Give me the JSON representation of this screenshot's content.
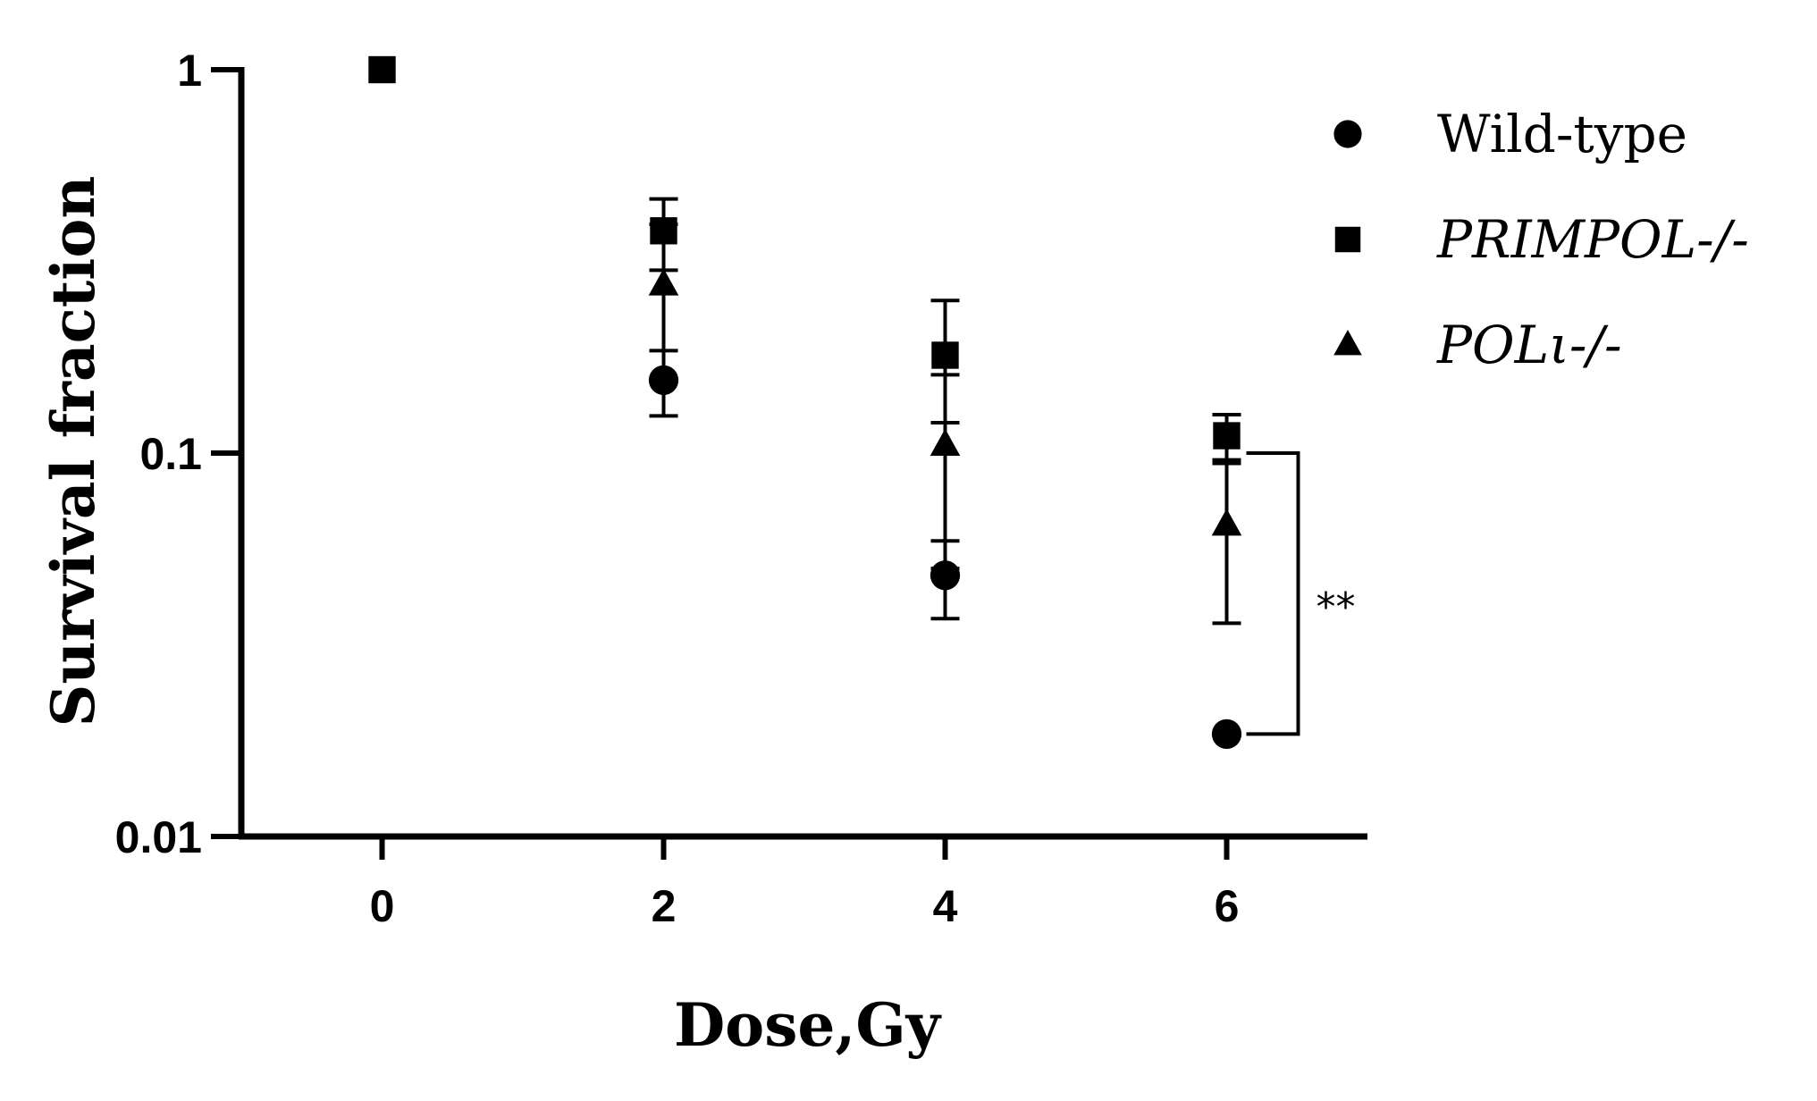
{
  "chart_data": {
    "type": "scatter",
    "xlabel": "Dose,Gy",
    "ylabel": "Survival fraction",
    "x_ticks": [
      "0",
      "2",
      "4",
      "6"
    ],
    "y_ticks": [
      "0.01",
      "0.1",
      "1"
    ],
    "xlim": [
      -1,
      7
    ],
    "ylim": [
      0.01,
      1
    ],
    "y_scale": "log",
    "grid": false,
    "legend_position": "top-right",
    "series": [
      {
        "name": "Wild-type",
        "marker": "circle",
        "italic": false,
        "color": "#000000",
        "points": [
          {
            "x": 2,
            "y": 0.155,
            "err_lo": 0.125,
            "err_hi": 0.185
          },
          {
            "x": 4,
            "y": 0.048,
            "err_lo": 0.037,
            "err_hi": 0.059
          },
          {
            "x": 6,
            "y": 0.0185
          }
        ]
      },
      {
        "name": "PRIMPOL-/-",
        "marker": "square",
        "italic": true,
        "color": "#000000",
        "points": [
          {
            "x": 0,
            "y": 1.0
          },
          {
            "x": 2,
            "y": 0.38,
            "err_lo": 0.3,
            "err_hi": 0.46
          },
          {
            "x": 4,
            "y": 0.18,
            "err_lo": 0.12,
            "err_hi": 0.25
          },
          {
            "x": 6,
            "y": 0.111,
            "err_lo": 0.096,
            "err_hi": 0.126
          }
        ]
      },
      {
        "name": "POLι-/-",
        "marker": "triangle",
        "italic": true,
        "color": "#000000",
        "points": [
          {
            "x": 2,
            "y": 0.275,
            "err_lo": 0.155,
            "err_hi": 0.395
          },
          {
            "x": 4,
            "y": 0.105,
            "err_lo": 0.05,
            "err_hi": 0.16
          },
          {
            "x": 6,
            "y": 0.065,
            "err_lo": 0.036,
            "err_hi": 0.094
          }
        ]
      }
    ],
    "annotations": [
      {
        "text": "**",
        "type": "significance-bracket",
        "x": 6,
        "y_from": 0.1,
        "y_to": 0.0185
      }
    ]
  }
}
